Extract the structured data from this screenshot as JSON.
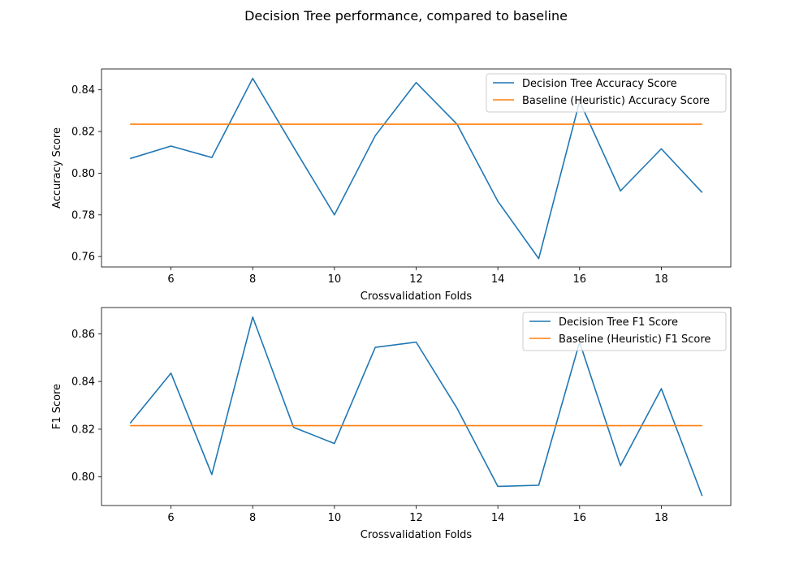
{
  "figure": {
    "title": "Decision Tree performance, compared to baseline"
  },
  "chart_data": [
    {
      "type": "line",
      "xlabel": "Crossvalidation Folds",
      "ylabel": "Accuracy Score",
      "xlim": [
        4.3,
        19.7
      ],
      "ylim": [
        0.755,
        0.85
      ],
      "xticks": [
        6,
        8,
        10,
        12,
        14,
        16,
        18
      ],
      "yticks": [
        0.76,
        0.78,
        0.8,
        0.82,
        0.84
      ],
      "grid": false,
      "legend_position": "top-right",
      "x": [
        5,
        6,
        7,
        8,
        9,
        10,
        11,
        12,
        13,
        14,
        15,
        16,
        17,
        18,
        19
      ],
      "series": [
        {
          "name": "Decision Tree Accuracy Score",
          "color": "#1f77b4",
          "values": [
            0.807,
            0.813,
            0.8075,
            0.8455,
            0.8125,
            0.78,
            0.818,
            0.8435,
            0.8235,
            0.7865,
            0.759,
            0.8345,
            0.7915,
            0.8117,
            0.7907
          ]
        },
        {
          "name": "Baseline (Heuristic) Accuracy Score",
          "color": "#ff7f0e",
          "values": [
            0.8235,
            0.8235,
            0.8235,
            0.8235,
            0.8235,
            0.8235,
            0.8235,
            0.8235,
            0.8235,
            0.8235,
            0.8235,
            0.8235,
            0.8235,
            0.8235,
            0.8235
          ]
        }
      ]
    },
    {
      "type": "line",
      "xlabel": "Crossvalidation Folds",
      "ylabel": "F1 Score",
      "xlim": [
        4.3,
        19.7
      ],
      "ylim": [
        0.788,
        0.871
      ],
      "xticks": [
        6,
        8,
        10,
        12,
        14,
        16,
        18
      ],
      "yticks": [
        0.8,
        0.82,
        0.84,
        0.86
      ],
      "grid": false,
      "legend_position": "top-right",
      "x": [
        5,
        6,
        7,
        8,
        9,
        10,
        11,
        12,
        13,
        14,
        15,
        16,
        17,
        18,
        19
      ],
      "series": [
        {
          "name": "Decision Tree F1 Score",
          "color": "#1f77b4",
          "values": [
            0.8225,
            0.8435,
            0.801,
            0.867,
            0.8208,
            0.814,
            0.8543,
            0.8565,
            0.8288,
            0.796,
            0.7965,
            0.8565,
            0.8047,
            0.837,
            0.792
          ]
        },
        {
          "name": "Baseline (Heuristic) F1 Score",
          "color": "#ff7f0e",
          "values": [
            0.8215,
            0.8215,
            0.8215,
            0.8215,
            0.8215,
            0.8215,
            0.8215,
            0.8215,
            0.8215,
            0.8215,
            0.8215,
            0.8215,
            0.8215,
            0.8215,
            0.8215
          ]
        }
      ]
    }
  ]
}
